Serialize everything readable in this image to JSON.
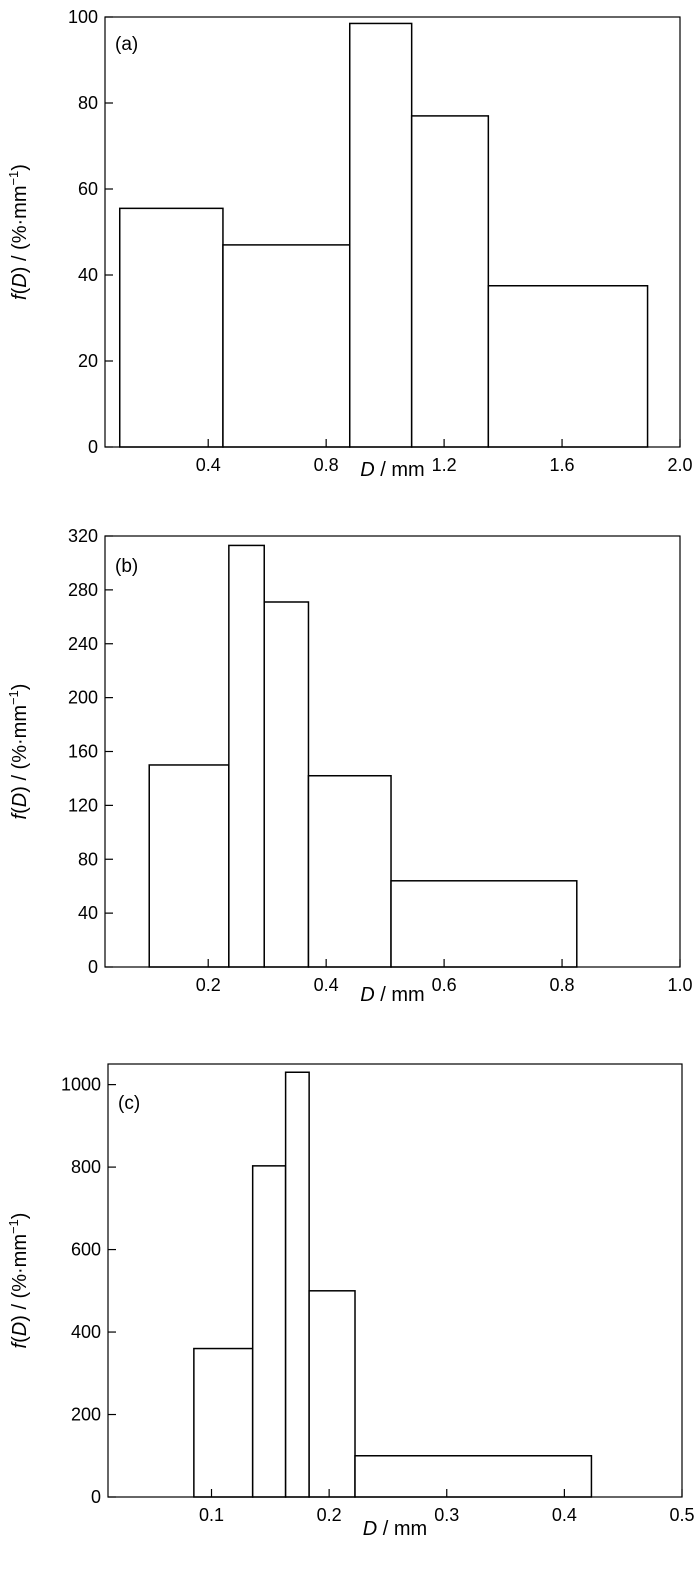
{
  "chart_data": [
    {
      "type": "bar",
      "panel_label": "(a)",
      "xlabel_italic": "D",
      "xlabel_rest": " / mm",
      "ylabel_f": "f",
      "ylabel_open": "(",
      "ylabel_D": "D",
      "ylabel_close": ")",
      "ylabel_units": " / (%·mm",
      "ylabel_exp": "−1",
      "ylabel_end": ")",
      "xlim": [
        0.05,
        2.0
      ],
      "ylim": [
        0,
        100
      ],
      "xticks": [
        0.4,
        0.8,
        1.2,
        1.6,
        2.0
      ],
      "xtick_labels": [
        "0.4",
        "0.8",
        "1.2",
        "1.6",
        "2.0"
      ],
      "yticks": [
        0,
        20,
        40,
        60,
        80,
        100
      ],
      "ytick_labels": [
        "0",
        "20",
        "40",
        "60",
        "80",
        "100"
      ],
      "bins": [
        {
          "x0": 0.1,
          "x1": 0.45,
          "value": 55.5
        },
        {
          "x0": 0.45,
          "x1": 0.88,
          "value": 47.0
        },
        {
          "x0": 0.88,
          "x1": 1.09,
          "value": 98.5
        },
        {
          "x0": 1.09,
          "x1": 1.35,
          "value": 77.0
        },
        {
          "x0": 1.35,
          "x1": 1.89,
          "value": 37.5
        }
      ]
    },
    {
      "type": "bar",
      "panel_label": "(b)",
      "xlabel_italic": "D",
      "xlabel_rest": " / mm",
      "ylabel_f": "f",
      "ylabel_open": "(",
      "ylabel_D": "D",
      "ylabel_close": ")",
      "ylabel_units": " / (%·mm",
      "ylabel_exp": "−1",
      "ylabel_end": ")",
      "xlim": [
        0.025,
        1.0
      ],
      "ylim": [
        0,
        320
      ],
      "xticks": [
        0.2,
        0.4,
        0.6,
        0.8,
        1.0
      ],
      "xtick_labels": [
        "0.2",
        "0.4",
        "0.6",
        "0.8",
        "1.0"
      ],
      "yticks": [
        0,
        40,
        80,
        120,
        160,
        200,
        240,
        280,
        320
      ],
      "ytick_labels": [
        "0",
        "40",
        "80",
        "120",
        "160",
        "200",
        "240",
        "280",
        "320"
      ],
      "bins": [
        {
          "x0": 0.1,
          "x1": 0.235,
          "value": 150
        },
        {
          "x0": 0.235,
          "x1": 0.295,
          "value": 313
        },
        {
          "x0": 0.295,
          "x1": 0.37,
          "value": 271
        },
        {
          "x0": 0.37,
          "x1": 0.51,
          "value": 142
        },
        {
          "x0": 0.51,
          "x1": 0.825,
          "value": 64
        }
      ]
    },
    {
      "type": "bar",
      "panel_label": "(c)",
      "xlabel_italic": "D",
      "xlabel_rest": " / mm",
      "ylabel_f": "f",
      "ylabel_open": "(",
      "ylabel_D": "D",
      "ylabel_close": ")",
      "ylabel_units": " / (%·mm",
      "ylabel_exp": "−1",
      "ylabel_end": ")",
      "xlim": [
        0.012,
        0.5
      ],
      "ylim": [
        0,
        1050
      ],
      "xticks": [
        0.1,
        0.2,
        0.3,
        0.4,
        0.5
      ],
      "xtick_labels": [
        "0.1",
        "0.2",
        "0.3",
        "0.4",
        "0.5"
      ],
      "yticks": [
        0,
        200,
        400,
        600,
        800,
        1000
      ],
      "ytick_labels": [
        "0",
        "200",
        "400",
        "600",
        "800",
        "1000"
      ],
      "bins": [
        {
          "x0": 0.085,
          "x1": 0.135,
          "value": 360
        },
        {
          "x0": 0.135,
          "x1": 0.163,
          "value": 803
        },
        {
          "x0": 0.163,
          "x1": 0.183,
          "value": 1030
        },
        {
          "x0": 0.183,
          "x1": 0.222,
          "value": 500
        },
        {
          "x0": 0.222,
          "x1": 0.423,
          "value": 100
        }
      ]
    }
  ]
}
